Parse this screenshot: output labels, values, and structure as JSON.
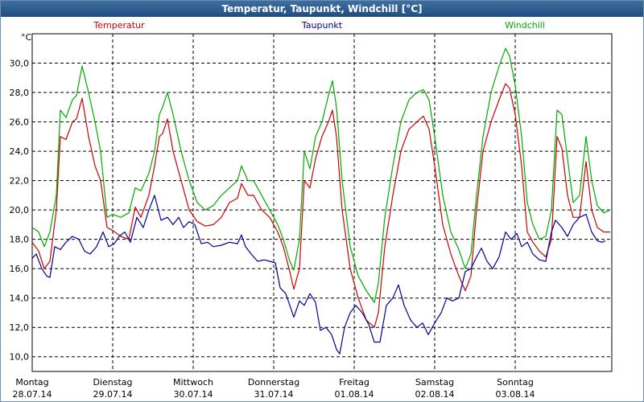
{
  "window": {
    "title": "Temperatur, Taupunkt, Windchill [°C]"
  },
  "colors": {
    "temperatur": "#cc0000",
    "taupunkt": "#000099",
    "windchill": "#00aa00"
  },
  "chart_data": {
    "type": "line",
    "title": "Temperatur, Taupunkt, Windchill [°C]",
    "ylabel": "°C",
    "ylim": [
      9.0,
      32.0
    ],
    "xlim": [
      0,
      7.2
    ],
    "grid": true,
    "legend": "top",
    "yticks": [
      "10,0",
      "12,0",
      "14,0",
      "16,0",
      "18,0",
      "20,0",
      "22,0",
      "24,0",
      "26,0",
      "28,0",
      "30,0"
    ],
    "ytick_values": [
      10,
      12,
      14,
      16,
      18,
      20,
      22,
      24,
      26,
      28,
      30
    ],
    "xticks": [
      {
        "day": "Montag",
        "date": "28.07.14"
      },
      {
        "day": "Dienstag",
        "date": "29.07.14"
      },
      {
        "day": "Mittwoch",
        "date": "30.07.14"
      },
      {
        "day": "Donnerstag",
        "date": "31.07.14"
      },
      {
        "day": "Freitag",
        "date": "01.08.14"
      },
      {
        "day": "Samstag",
        "date": "02.08.14"
      },
      {
        "day": "Sonntag",
        "date": "03.08.14"
      }
    ],
    "series": [
      {
        "name": "Temperatur",
        "color": "#cc0000",
        "points": [
          [
            0,
            17.8
          ],
          [
            0.08,
            17.2
          ],
          [
            0.15,
            16.0
          ],
          [
            0.22,
            16.5
          ],
          [
            0.3,
            20.0
          ],
          [
            0.35,
            25.0
          ],
          [
            0.42,
            24.8
          ],
          [
            0.5,
            26.0
          ],
          [
            0.55,
            26.2
          ],
          [
            0.62,
            27.6
          ],
          [
            0.7,
            25.0
          ],
          [
            0.78,
            23.0
          ],
          [
            0.85,
            22.0
          ],
          [
            0.93,
            18.8
          ],
          [
            1.0,
            18.6
          ],
          [
            1.1,
            18.2
          ],
          [
            1.2,
            18.0
          ],
          [
            1.28,
            20.2
          ],
          [
            1.35,
            19.5
          ],
          [
            1.45,
            21.0
          ],
          [
            1.52,
            23.0
          ],
          [
            1.58,
            25.0
          ],
          [
            1.62,
            25.2
          ],
          [
            1.68,
            26.2
          ],
          [
            1.75,
            24.0
          ],
          [
            1.85,
            22.0
          ],
          [
            1.95,
            20.0
          ],
          [
            2.05,
            19.2
          ],
          [
            2.15,
            18.9
          ],
          [
            2.25,
            19.0
          ],
          [
            2.35,
            19.5
          ],
          [
            2.45,
            20.5
          ],
          [
            2.55,
            20.8
          ],
          [
            2.6,
            21.8
          ],
          [
            2.68,
            21.0
          ],
          [
            2.75,
            21.0
          ],
          [
            2.85,
            20.0
          ],
          [
            2.95,
            19.5
          ],
          [
            3.05,
            18.5
          ],
          [
            3.12,
            17.5
          ],
          [
            3.2,
            15.8
          ],
          [
            3.25,
            14.6
          ],
          [
            3.32,
            16.0
          ],
          [
            3.38,
            22.0
          ],
          [
            3.45,
            21.5
          ],
          [
            3.52,
            23.5
          ],
          [
            3.6,
            25.0
          ],
          [
            3.68,
            26.0
          ],
          [
            3.73,
            26.8
          ],
          [
            3.78,
            25.0
          ],
          [
            3.85,
            20.0
          ],
          [
            3.95,
            16.0
          ],
          [
            4.05,
            14.0
          ],
          [
            4.15,
            12.5
          ],
          [
            4.25,
            12.0
          ],
          [
            4.3,
            13.0
          ],
          [
            4.38,
            17.5
          ],
          [
            4.48,
            21.0
          ],
          [
            4.58,
            24.0
          ],
          [
            4.68,
            25.5
          ],
          [
            4.78,
            26.0
          ],
          [
            4.86,
            26.4
          ],
          [
            4.93,
            25.5
          ],
          [
            5.0,
            23.0
          ],
          [
            5.1,
            19.0
          ],
          [
            5.2,
            17.0
          ],
          [
            5.3,
            15.5
          ],
          [
            5.38,
            14.5
          ],
          [
            5.45,
            15.5
          ],
          [
            5.52,
            20.0
          ],
          [
            5.6,
            24.0
          ],
          [
            5.7,
            26.0
          ],
          [
            5.8,
            27.5
          ],
          [
            5.88,
            28.6
          ],
          [
            5.93,
            28.3
          ],
          [
            6.0,
            26.5
          ],
          [
            6.08,
            23.0
          ],
          [
            6.15,
            18.5
          ],
          [
            6.22,
            17.8
          ],
          [
            6.3,
            17.2
          ],
          [
            6.38,
            16.8
          ],
          [
            6.45,
            18.0
          ],
          [
            6.52,
            25.0
          ],
          [
            6.58,
            24.2
          ],
          [
            6.65,
            21.0
          ],
          [
            6.72,
            19.5
          ],
          [
            6.8,
            19.5
          ],
          [
            6.88,
            23.3
          ],
          [
            6.95,
            20.0
          ],
          [
            7.02,
            18.8
          ],
          [
            7.1,
            18.5
          ],
          [
            7.18,
            18.5
          ]
        ]
      },
      {
        "name": "Taupunkt",
        "color": "#000099",
        "points": [
          [
            0,
            16.7
          ],
          [
            0.05,
            17.0
          ],
          [
            0.12,
            16.0
          ],
          [
            0.18,
            15.5
          ],
          [
            0.22,
            15.4
          ],
          [
            0.28,
            17.5
          ],
          [
            0.35,
            17.3
          ],
          [
            0.42,
            17.8
          ],
          [
            0.5,
            18.2
          ],
          [
            0.58,
            18.0
          ],
          [
            0.65,
            17.2
          ],
          [
            0.72,
            17.0
          ],
          [
            0.8,
            17.5
          ],
          [
            0.88,
            18.5
          ],
          [
            0.95,
            17.5
          ],
          [
            1.02,
            17.7
          ],
          [
            1.08,
            18.2
          ],
          [
            1.15,
            18.5
          ],
          [
            1.22,
            17.8
          ],
          [
            1.3,
            19.5
          ],
          [
            1.38,
            18.8
          ],
          [
            1.45,
            20.0
          ],
          [
            1.52,
            21.0
          ],
          [
            1.6,
            19.3
          ],
          [
            1.68,
            19.5
          ],
          [
            1.75,
            19.0
          ],
          [
            1.82,
            19.5
          ],
          [
            1.88,
            18.8
          ],
          [
            1.95,
            19.2
          ],
          [
            2.02,
            19.0
          ],
          [
            2.1,
            17.7
          ],
          [
            2.18,
            17.8
          ],
          [
            2.25,
            17.5
          ],
          [
            2.35,
            17.6
          ],
          [
            2.45,
            17.8
          ],
          [
            2.55,
            17.7
          ],
          [
            2.6,
            18.3
          ],
          [
            2.65,
            17.5
          ],
          [
            2.72,
            17.0
          ],
          [
            2.8,
            16.5
          ],
          [
            2.88,
            16.6
          ],
          [
            2.95,
            16.5
          ],
          [
            3.02,
            16.4
          ],
          [
            3.08,
            14.7
          ],
          [
            3.15,
            14.3
          ],
          [
            3.2,
            13.5
          ],
          [
            3.25,
            12.7
          ],
          [
            3.32,
            13.8
          ],
          [
            3.38,
            13.5
          ],
          [
            3.45,
            14.3
          ],
          [
            3.52,
            13.7
          ],
          [
            3.58,
            11.8
          ],
          [
            3.65,
            12.0
          ],
          [
            3.72,
            11.5
          ],
          [
            3.78,
            10.5
          ],
          [
            3.82,
            10.2
          ],
          [
            3.88,
            12.0
          ],
          [
            3.95,
            13.0
          ],
          [
            4.02,
            13.5
          ],
          [
            4.1,
            13.0
          ],
          [
            4.18,
            12.2
          ],
          [
            4.25,
            11.0
          ],
          [
            4.32,
            11.0
          ],
          [
            4.4,
            13.5
          ],
          [
            4.48,
            14.0
          ],
          [
            4.55,
            14.9
          ],
          [
            4.62,
            13.5
          ],
          [
            4.7,
            12.5
          ],
          [
            4.78,
            12.0
          ],
          [
            4.85,
            12.3
          ],
          [
            4.92,
            11.5
          ],
          [
            5.0,
            12.3
          ],
          [
            5.08,
            13.0
          ],
          [
            5.15,
            14.0
          ],
          [
            5.22,
            13.8
          ],
          [
            5.3,
            14.0
          ],
          [
            5.38,
            15.8
          ],
          [
            5.45,
            16.0
          ],
          [
            5.52,
            16.8
          ],
          [
            5.58,
            17.4
          ],
          [
            5.65,
            16.5
          ],
          [
            5.72,
            16.0
          ],
          [
            5.8,
            16.8
          ],
          [
            5.88,
            18.5
          ],
          [
            5.95,
            18.0
          ],
          [
            6.02,
            18.4
          ],
          [
            6.08,
            17.5
          ],
          [
            6.15,
            17.8
          ],
          [
            6.22,
            17.0
          ],
          [
            6.3,
            16.6
          ],
          [
            6.38,
            16.5
          ],
          [
            6.45,
            18.5
          ],
          [
            6.5,
            19.3
          ],
          [
            6.58,
            18.8
          ],
          [
            6.65,
            18.2
          ],
          [
            6.72,
            19.0
          ],
          [
            6.8,
            19.5
          ],
          [
            6.88,
            19.7
          ],
          [
            6.95,
            18.5
          ],
          [
            7.02,
            17.9
          ],
          [
            7.08,
            17.8
          ],
          [
            7.12,
            17.9
          ]
        ]
      },
      {
        "name": "Windchill",
        "color": "#00aa00",
        "points": [
          [
            0,
            18.8
          ],
          [
            0.08,
            18.5
          ],
          [
            0.15,
            17.5
          ],
          [
            0.22,
            18.5
          ],
          [
            0.3,
            21.0
          ],
          [
            0.35,
            26.8
          ],
          [
            0.42,
            26.3
          ],
          [
            0.5,
            27.5
          ],
          [
            0.55,
            27.8
          ],
          [
            0.62,
            29.8
          ],
          [
            0.7,
            28.0
          ],
          [
            0.78,
            26.0
          ],
          [
            0.85,
            24.0
          ],
          [
            0.93,
            19.5
          ],
          [
            1.0,
            19.7
          ],
          [
            1.1,
            19.5
          ],
          [
            1.2,
            19.8
          ],
          [
            1.28,
            21.5
          ],
          [
            1.35,
            21.3
          ],
          [
            1.45,
            22.5
          ],
          [
            1.52,
            24.0
          ],
          [
            1.58,
            26.5
          ],
          [
            1.62,
            27.0
          ],
          [
            1.68,
            28.0
          ],
          [
            1.75,
            26.5
          ],
          [
            1.85,
            24.0
          ],
          [
            1.95,
            22.0
          ],
          [
            2.05,
            20.5
          ],
          [
            2.15,
            20.0
          ],
          [
            2.25,
            20.3
          ],
          [
            2.35,
            21.0
          ],
          [
            2.45,
            21.5
          ],
          [
            2.55,
            22.0
          ],
          [
            2.6,
            23.0
          ],
          [
            2.68,
            22.0
          ],
          [
            2.75,
            22.0
          ],
          [
            2.85,
            21.0
          ],
          [
            2.95,
            20.0
          ],
          [
            3.05,
            19.0
          ],
          [
            3.12,
            18.0
          ],
          [
            3.2,
            16.5
          ],
          [
            3.25,
            15.9
          ],
          [
            3.32,
            18.0
          ],
          [
            3.38,
            24.0
          ],
          [
            3.45,
            22.8
          ],
          [
            3.52,
            25.0
          ],
          [
            3.6,
            26.0
          ],
          [
            3.68,
            27.8
          ],
          [
            3.73,
            28.8
          ],
          [
            3.78,
            27.0
          ],
          [
            3.85,
            22.0
          ],
          [
            3.95,
            17.5
          ],
          [
            4.05,
            15.5
          ],
          [
            4.15,
            14.5
          ],
          [
            4.25,
            13.7
          ],
          [
            4.3,
            15.0
          ],
          [
            4.38,
            19.5
          ],
          [
            4.48,
            23.0
          ],
          [
            4.58,
            26.0
          ],
          [
            4.68,
            27.5
          ],
          [
            4.78,
            28.0
          ],
          [
            4.86,
            28.2
          ],
          [
            4.93,
            27.5
          ],
          [
            5.0,
            25.0
          ],
          [
            5.1,
            21.0
          ],
          [
            5.2,
            18.5
          ],
          [
            5.3,
            17.3
          ],
          [
            5.38,
            16.0
          ],
          [
            5.45,
            17.0
          ],
          [
            5.52,
            21.0
          ],
          [
            5.6,
            25.0
          ],
          [
            5.7,
            28.0
          ],
          [
            5.8,
            29.8
          ],
          [
            5.88,
            31.0
          ],
          [
            5.93,
            30.5
          ],
          [
            6.0,
            28.5
          ],
          [
            6.08,
            25.0
          ],
          [
            6.15,
            20.5
          ],
          [
            6.22,
            19.0
          ],
          [
            6.3,
            18.0
          ],
          [
            6.38,
            18.2
          ],
          [
            6.45,
            20.0
          ],
          [
            6.52,
            26.8
          ],
          [
            6.58,
            26.5
          ],
          [
            6.65,
            23.5
          ],
          [
            6.72,
            20.5
          ],
          [
            6.8,
            21.0
          ],
          [
            6.88,
            25.0
          ],
          [
            6.95,
            22.0
          ],
          [
            7.02,
            20.3
          ],
          [
            7.1,
            19.8
          ],
          [
            7.18,
            20.0
          ]
        ]
      }
    ]
  }
}
